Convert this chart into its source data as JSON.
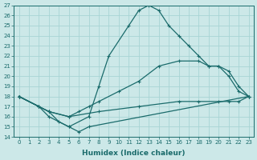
{
  "xlabel": "Humidex (Indice chaleur)",
  "xlim": [
    -0.5,
    23.5
  ],
  "ylim": [
    14,
    27
  ],
  "yticks": [
    14,
    15,
    16,
    17,
    18,
    19,
    20,
    21,
    22,
    23,
    24,
    25,
    26,
    27
  ],
  "xticks": [
    0,
    1,
    2,
    3,
    4,
    5,
    6,
    7,
    8,
    9,
    10,
    11,
    12,
    13,
    14,
    15,
    16,
    17,
    18,
    19,
    20,
    21,
    22,
    23
  ],
  "bg_color": "#cce8e8",
  "line_color": "#1a6b6b",
  "grid_color": "#b0d8d8",
  "lines": [
    {
      "x": [
        0,
        2,
        3,
        5,
        7,
        8,
        9,
        11,
        12,
        13,
        14,
        15,
        16,
        17,
        18,
        19,
        20,
        21,
        22,
        23
      ],
      "y": [
        18,
        17,
        16,
        15,
        16,
        19,
        22,
        25,
        26.5,
        27,
        26.5,
        25,
        24,
        23,
        22,
        21,
        21,
        20,
        18.5,
        18
      ]
    },
    {
      "x": [
        0,
        2,
        3,
        5,
        6,
        7,
        8,
        10,
        12,
        14,
        16,
        18,
        19,
        20,
        21,
        22,
        23
      ],
      "y": [
        18,
        17,
        16.5,
        16,
        16.5,
        17,
        17.5,
        18.5,
        19.5,
        21,
        21.5,
        21.5,
        21,
        21,
        20.5,
        19,
        18
      ]
    },
    {
      "x": [
        0,
        2,
        3,
        5,
        8,
        12,
        16,
        18,
        20,
        21,
        22,
        23
      ],
      "y": [
        18,
        17,
        16.5,
        16,
        16.5,
        17,
        17.5,
        17.5,
        17.5,
        17.5,
        17.5,
        18
      ]
    },
    {
      "x": [
        0,
        2,
        3,
        4,
        5,
        6,
        7,
        23
      ],
      "y": [
        18,
        17,
        16.5,
        15.5,
        15,
        14.5,
        15,
        18
      ]
    }
  ]
}
